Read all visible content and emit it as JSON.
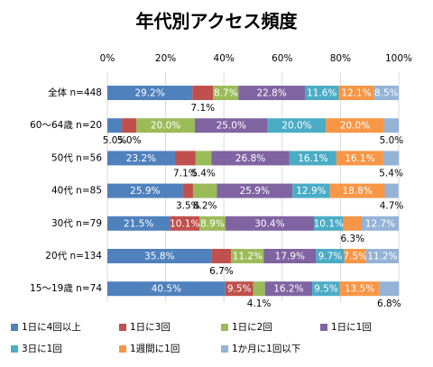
{
  "chart_data": {
    "type": "bar",
    "orientation": "horizontal",
    "stacked": true,
    "title": "年代別アクセス頻度",
    "categories": [
      "全体 n=448",
      "60～64歳 n=20",
      "50代 n=56",
      "40代 n=85",
      "30代 n=79",
      "20代 n=134",
      "15～19歳 n=74"
    ],
    "series": [
      {
        "name": "1日に4回以上",
        "color": "#4f81bd",
        "values": [
          29.2,
          5.0,
          23.2,
          25.9,
          21.5,
          35.8,
          40.5
        ],
        "value_labels": [
          "29.2%",
          "5.0%",
          "23.2%",
          "25.9%",
          "21.5%",
          "35.8%",
          "40.5%"
        ]
      },
      {
        "name": "1日に3回",
        "color": "#c0504d",
        "values": [
          7.1,
          5.0,
          7.1,
          3.5,
          10.1,
          6.7,
          9.5
        ],
        "value_labels": [
          "7.1%",
          "5.0%",
          "7.1%",
          "3.5%",
          "10.1%",
          "6.7%",
          "9.5%"
        ]
      },
      {
        "name": "1日に2回",
        "color": "#9bbb59",
        "values": [
          8.7,
          20.0,
          5.4,
          8.2,
          8.9,
          11.2,
          4.1
        ],
        "value_labels": [
          "8.7%",
          "20.0%",
          "5.4%",
          "8.2%",
          "8.9%",
          "11.2%",
          "4.1%"
        ]
      },
      {
        "name": "1日に1回",
        "color": "#8064a2",
        "values": [
          22.8,
          25.0,
          26.8,
          25.9,
          30.4,
          17.9,
          16.2
        ],
        "value_labels": [
          "22.8%",
          "25.0%",
          "26.8%",
          "25.9%",
          "30.4%",
          "17.9%",
          "16.2%"
        ]
      },
      {
        "name": "3日に1回",
        "color": "#4bacc6",
        "values": [
          11.6,
          20.0,
          16.1,
          12.9,
          10.1,
          9.7,
          9.5
        ],
        "value_labels": [
          "11.6%",
          "20.0%",
          "16.1%",
          "12.9%",
          "10.1%",
          "9.7%",
          "9.5%"
        ]
      },
      {
        "name": "1週間に1回",
        "color": "#f79646",
        "values": [
          12.1,
          20.0,
          16.1,
          18.8,
          6.3,
          7.5,
          13.5
        ],
        "value_labels": [
          "12.1%",
          "20.0%",
          "16.1%",
          "18.8%",
          "6.3%",
          "7.5%",
          "13.5%"
        ]
      },
      {
        "name": "1か月に1回以下",
        "color": "#95b3d7",
        "values": [
          8.5,
          5.0,
          5.4,
          4.7,
          12.7,
          11.2,
          6.8
        ],
        "value_labels": [
          "8.5%",
          "5.0%",
          "5.4%",
          "4.7%",
          "12.7%",
          "11.2%",
          "6.8%"
        ]
      }
    ],
    "xlim": [
      0,
      100
    ],
    "xticks": [
      {
        "value": 0,
        "label": "0%"
      },
      {
        "value": 20,
        "label": "20%"
      },
      {
        "value": 40,
        "label": "40%"
      },
      {
        "value": 60,
        "label": "60%"
      },
      {
        "value": 80,
        "label": "80%"
      },
      {
        "value": 100,
        "label": "100%"
      }
    ],
    "grid": true,
    "legend": "bottom"
  }
}
